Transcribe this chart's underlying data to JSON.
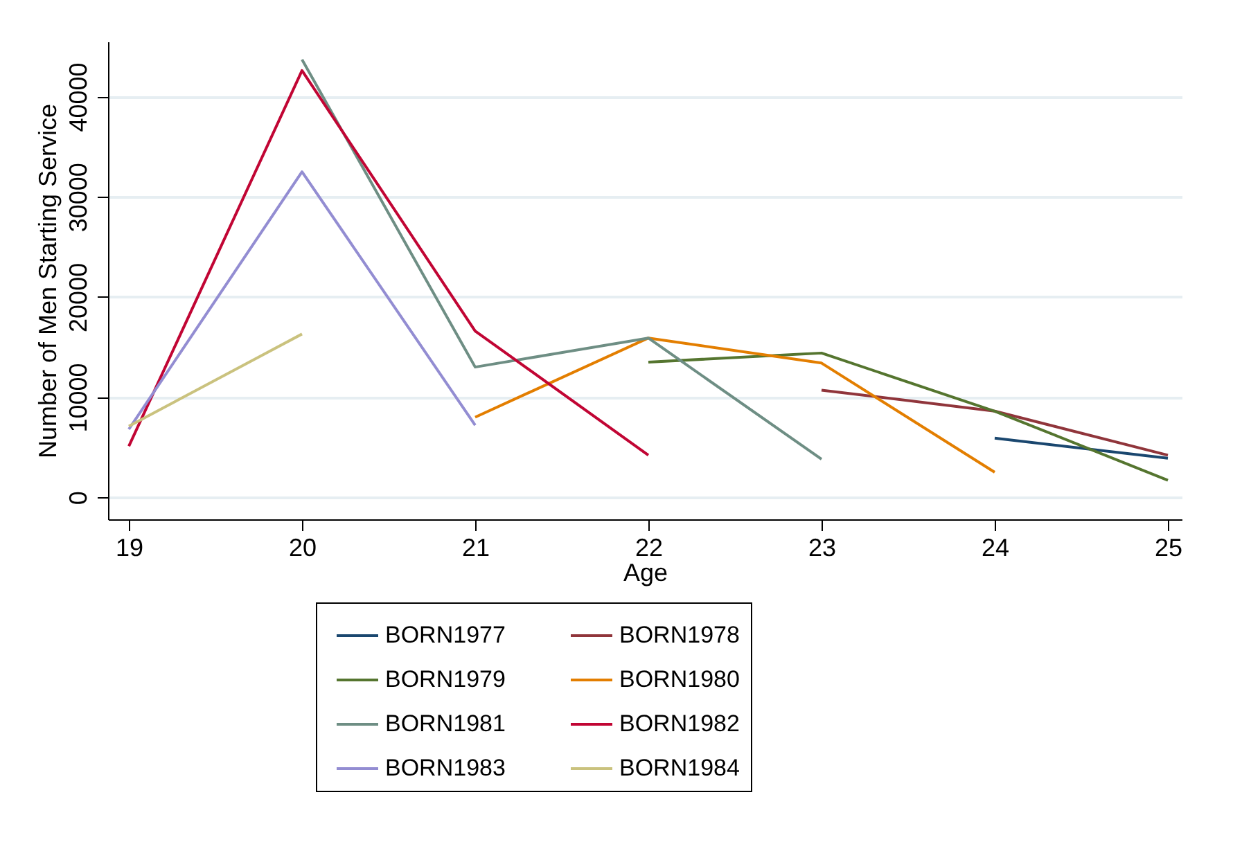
{
  "chart_data": {
    "type": "line",
    "xlabel": "Age",
    "ylabel": "Number of Men Starting Service",
    "xlim": [
      18.88,
      25.08
    ],
    "xticks": [
      19,
      20,
      21,
      22,
      23,
      24,
      25
    ],
    "ylim": [
      -2200,
      45500
    ],
    "yticks": [
      0,
      10000,
      20000,
      30000,
      40000
    ],
    "grid": "y",
    "legend": "bottom",
    "marker": "none",
    "line_style": "solid",
    "series": [
      {
        "name": "BORN1977",
        "color": "#1a476f",
        "x": [
          24,
          25
        ],
        "values": [
          5900,
          3900
        ]
      },
      {
        "name": "BORN1978",
        "color": "#90353b",
        "x": [
          23,
          24,
          25
        ],
        "values": [
          10700,
          8600,
          4200
        ]
      },
      {
        "name": "BORN1979",
        "color": "#55752f",
        "x": [
          22,
          23,
          24,
          25
        ],
        "values": [
          13500,
          14400,
          8600,
          1700
        ]
      },
      {
        "name": "BORN1980",
        "color": "#e37e00",
        "x": [
          21,
          22,
          23,
          24
        ],
        "values": [
          8000,
          15900,
          13400,
          2500
        ]
      },
      {
        "name": "BORN1981",
        "color": "#6e8e84",
        "x": [
          20,
          21,
          22,
          23
        ],
        "values": [
          43700,
          13000,
          15900,
          3800
        ]
      },
      {
        "name": "BORN1982",
        "color": "#c10534",
        "x": [
          19,
          20,
          21,
          22
        ],
        "values": [
          5100,
          42600,
          16600,
          4200
        ]
      },
      {
        "name": "BORN1983",
        "color": "#938dd2",
        "x": [
          19,
          20,
          21
        ],
        "values": [
          6800,
          32500,
          7200
        ]
      },
      {
        "name": "BORN1984",
        "color": "#cac27e",
        "x": [
          19,
          20
        ],
        "values": [
          7100,
          16300
        ]
      }
    ]
  }
}
